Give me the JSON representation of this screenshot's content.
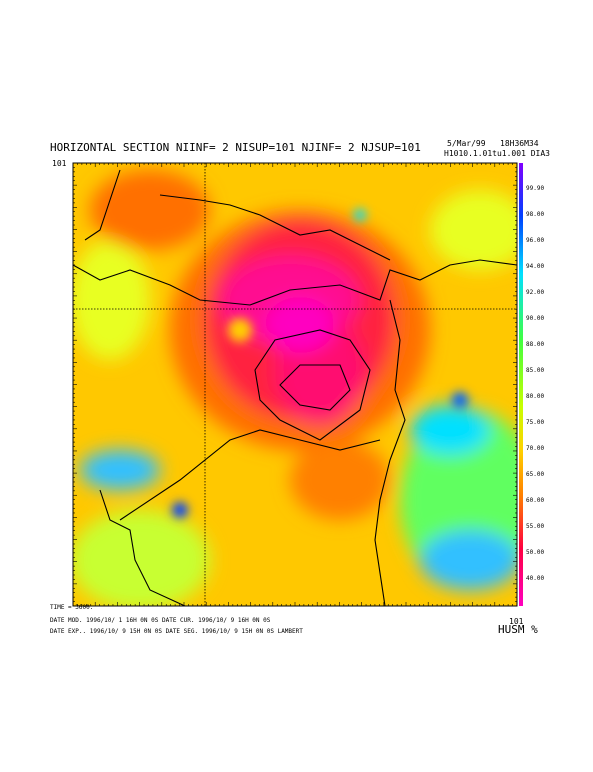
{
  "header": {
    "title": "HORIZONTAL SECTION NIINF=  2 NISUP=101 NJINF=  2 NJSUP=101",
    "date": "5/Mar/99",
    "time": "18H36M34",
    "code": "H1010.1.01tu1.001 DIA3"
  },
  "corner_label": "101",
  "colorbar": {
    "labels": [
      "99.90",
      "98.00",
      "96.00",
      "94.00",
      "92.00",
      "90.00",
      "88.00",
      "85.00",
      "80.00",
      "75.00",
      "70.00",
      "65.00",
      "60.00",
      "55.00",
      "50.00",
      "40.00"
    ]
  },
  "footer": {
    "time": "TIME =    3600.",
    "line1": "DATE MOD. 1996/10/ 1  16H 0N 0S    DATE CUR. 1996/10/ 9  16H 0N 0S",
    "line2": "DATE EXP.. 1996/10/ 9  15H 0N 0S    DATE SEG. 1996/10/ 9  15H 0N 0S    LAMBERT",
    "corner_label": "101",
    "variable": "HUSM %"
  }
}
